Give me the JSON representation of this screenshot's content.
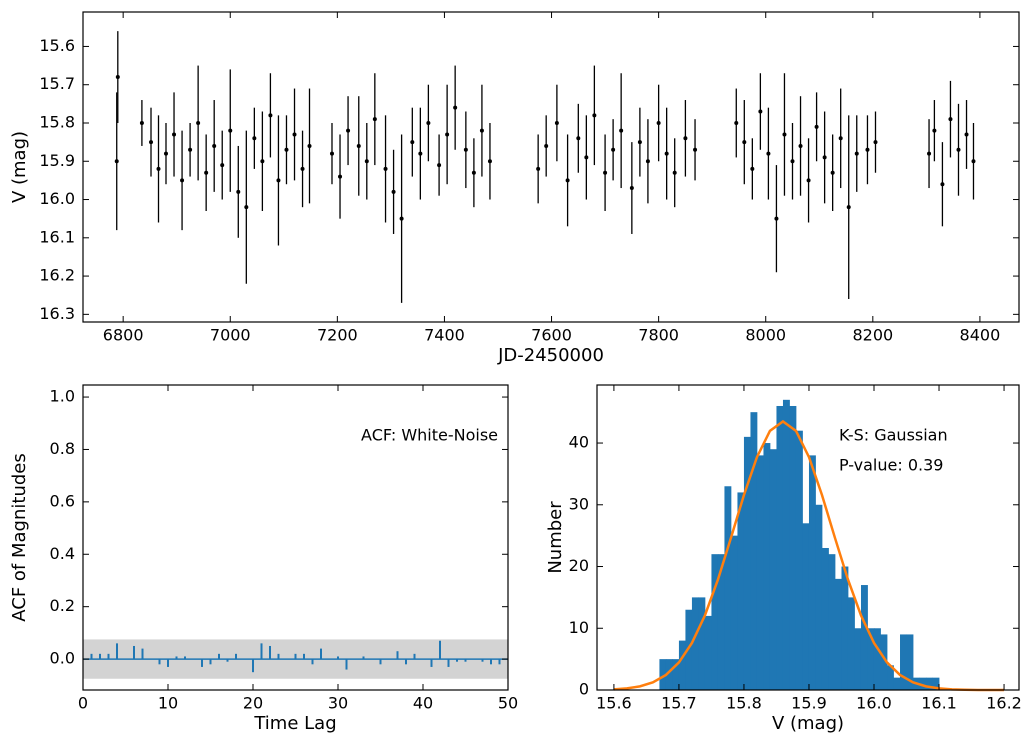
{
  "chart_data": [
    {
      "type": "scatter",
      "xlabel": "JD-2450000",
      "ylabel": "V (mag)",
      "xlim": [
        6725,
        8473
      ],
      "xticks": [
        6800,
        7000,
        7200,
        7400,
        7600,
        7800,
        8000,
        8200,
        8400
      ],
      "ylim": [
        15.51,
        16.32
      ],
      "y_inverted": true,
      "yticks": [
        15.6,
        15.7,
        15.8,
        15.9,
        {
          "value": 16.0,
          "label": "16.0"
        },
        16.1,
        16.2,
        16.3
      ],
      "color": "#000000",
      "x": [
        6788,
        6790,
        6835,
        6852,
        6866,
        6880,
        6895,
        6910,
        6925,
        6940,
        6955,
        6970,
        6985,
        7000,
        7015,
        7030,
        7045,
        7060,
        7075,
        7090,
        7105,
        7120,
        7135,
        7148,
        7190,
        7205,
        7220,
        7240,
        7255,
        7270,
        7290,
        7305,
        7320,
        7340,
        7355,
        7370,
        7390,
        7405,
        7420,
        7440,
        7455,
        7470,
        7485,
        7575,
        7590,
        7610,
        7630,
        7650,
        7665,
        7680,
        7700,
        7715,
        7730,
        7750,
        7765,
        7780,
        7800,
        7815,
        7830,
        7850,
        7868,
        7945,
        7960,
        7975,
        7990,
        8005,
        8020,
        8035,
        8050,
        8065,
        8080,
        8095,
        8110,
        8125,
        8140,
        8155,
        8170,
        8190,
        8205,
        8305,
        8315,
        8330,
        8345,
        8360,
        8375,
        8388
      ],
      "values": [
        15.9,
        15.68,
        15.8,
        15.85,
        15.92,
        15.88,
        15.83,
        15.95,
        15.87,
        15.8,
        15.93,
        15.86,
        15.91,
        15.82,
        15.98,
        16.02,
        15.84,
        15.9,
        15.78,
        15.95,
        15.87,
        15.83,
        15.92,
        15.86,
        15.88,
        15.94,
        15.82,
        15.86,
        15.9,
        15.79,
        15.92,
        15.98,
        16.05,
        15.85,
        15.88,
        15.8,
        15.91,
        15.83,
        15.76,
        15.87,
        15.93,
        15.82,
        15.9,
        15.92,
        15.86,
        15.8,
        15.95,
        15.84,
        15.89,
        15.78,
        15.93,
        15.87,
        15.82,
        15.97,
        15.85,
        15.9,
        15.8,
        15.88,
        15.93,
        15.84,
        15.87,
        15.8,
        15.85,
        15.92,
        15.77,
        15.88,
        16.05,
        15.83,
        15.9,
        15.86,
        15.95,
        15.81,
        15.89,
        15.93,
        15.84,
        16.02,
        15.88,
        15.87,
        15.85,
        15.88,
        15.82,
        15.96,
        15.79,
        15.87,
        15.83,
        15.9
      ],
      "errors": [
        0.18,
        0.12,
        0.06,
        0.09,
        0.14,
        0.08,
        0.11,
        0.13,
        0.07,
        0.15,
        0.1,
        0.12,
        0.09,
        0.16,
        0.12,
        0.2,
        0.08,
        0.13,
        0.11,
        0.17,
        0.09,
        0.12,
        0.1,
        0.15,
        0.08,
        0.11,
        0.09,
        0.13,
        0.1,
        0.12,
        0.14,
        0.11,
        0.22,
        0.09,
        0.12,
        0.1,
        0.08,
        0.13,
        0.11,
        0.1,
        0.09,
        0.12,
        0.1,
        0.09,
        0.08,
        0.1,
        0.12,
        0.09,
        0.11,
        0.13,
        0.1,
        0.08,
        0.15,
        0.12,
        0.09,
        0.11,
        0.1,
        0.12,
        0.09,
        0.1,
        0.08,
        0.09,
        0.11,
        0.08,
        0.1,
        0.12,
        0.14,
        0.16,
        0.1,
        0.13,
        0.11,
        0.09,
        0.12,
        0.1,
        0.13,
        0.24,
        0.1,
        0.09,
        0.08,
        0.09,
        0.08,
        0.11,
        0.1,
        0.12,
        0.09,
        0.1
      ]
    },
    {
      "type": "stem",
      "xlabel": "Time Lag",
      "ylabel": "ACF of Magnitudes",
      "xlim": [
        0,
        50
      ],
      "xticks": [
        0,
        10,
        20,
        30,
        40,
        50
      ],
      "ylim": [
        -0.118,
        1.046
      ],
      "yticks": [
        {
          "value": 0.0,
          "label": "0.0"
        },
        0.2,
        0.4,
        0.6,
        0.8,
        {
          "value": 1.0,
          "label": "1.0"
        }
      ],
      "color": "#1f77b4",
      "band": 0.075,
      "band_color": "#d3d3d3",
      "annotations": [
        "ACF: White-Noise"
      ],
      "x": [
        1,
        2,
        3,
        4,
        5,
        6,
        7,
        8,
        9,
        10,
        11,
        12,
        13,
        14,
        15,
        16,
        17,
        18,
        19,
        20,
        21,
        22,
        23,
        24,
        25,
        26,
        27,
        28,
        29,
        30,
        31,
        32,
        33,
        34,
        35,
        36,
        37,
        38,
        39,
        40,
        41,
        42,
        43,
        44,
        45,
        46,
        47,
        48,
        49,
        50
      ],
      "values": [
        0.02,
        0.02,
        0.02,
        0.06,
        0.0,
        0.05,
        0.04,
        0.0,
        -0.02,
        -0.03,
        0.01,
        0.01,
        0.0,
        -0.03,
        -0.02,
        0.02,
        -0.01,
        0.02,
        0.0,
        -0.05,
        0.06,
        0.05,
        0.02,
        0.0,
        0.02,
        0.02,
        -0.02,
        0.04,
        0.0,
        0.01,
        -0.04,
        0.0,
        0.01,
        0.0,
        -0.02,
        0.0,
        0.03,
        -0.02,
        0.02,
        0.0,
        -0.03,
        0.07,
        -0.03,
        -0.01,
        -0.01,
        0.0,
        -0.01,
        -0.02,
        -0.02,
        0.0
      ]
    },
    {
      "type": "histogram",
      "xlabel": "V (mag)",
      "ylabel": "Number",
      "xlim": [
        15.574,
        16.223
      ],
      "xticks": [
        15.6,
        15.7,
        15.8,
        15.9,
        {
          "value": 16.0,
          "label": "16.0"
        },
        16.1,
        16.2
      ],
      "ylim": [
        0,
        49.4
      ],
      "yticks": [
        0,
        10,
        20,
        30,
        40
      ],
      "color": "#1f77b4",
      "annotations": [
        "K-S: Gaussian",
        "P-value: 0.39"
      ],
      "bins": [
        15.67,
        15.68,
        15.69,
        15.7,
        15.71,
        15.72,
        15.73,
        15.74,
        15.75,
        15.76,
        15.77,
        15.78,
        15.79,
        15.8,
        15.81,
        15.82,
        15.83,
        15.84,
        15.85,
        15.86,
        15.87,
        15.88,
        15.89,
        15.9,
        15.91,
        15.92,
        15.93,
        15.94,
        15.95,
        15.96,
        15.97,
        15.98,
        15.99,
        16.0,
        16.01,
        16.02,
        16.03,
        16.04,
        16.05,
        16.06,
        16.07,
        16.08,
        16.09,
        16.1
      ],
      "values": [
        5,
        5,
        5,
        8,
        13,
        15,
        15,
        12,
        22,
        22,
        33,
        25,
        32,
        41,
        45,
        38,
        40,
        39,
        46,
        47,
        46,
        42,
        27,
        38,
        30,
        23,
        22,
        18,
        20,
        15,
        10,
        17,
        10,
        10,
        9,
        4,
        2,
        9,
        9,
        2,
        2,
        2,
        2
      ],
      "fit": {
        "color": "#ff7f0e",
        "x": [
          15.6,
          15.62,
          15.64,
          15.66,
          15.68,
          15.7,
          15.72,
          15.74,
          15.76,
          15.78,
          15.8,
          15.82,
          15.84,
          15.86,
          15.88,
          15.9,
          15.92,
          15.94,
          15.96,
          15.98,
          16.0,
          16.02,
          16.04,
          16.06,
          16.08,
          16.1,
          16.12,
          16.14,
          16.16,
          16.18,
          16.2
        ],
        "y": [
          0.11,
          0.26,
          0.59,
          1.24,
          2.44,
          4.47,
          7.62,
          12.09,
          17.88,
          24.63,
          31.59,
          37.72,
          41.98,
          43.5,
          41.98,
          37.72,
          31.59,
          24.63,
          17.88,
          12.09,
          7.62,
          4.47,
          2.44,
          1.24,
          0.59,
          0.26,
          0.11,
          0.04,
          0.01,
          0.0,
          0.0
        ]
      }
    }
  ]
}
